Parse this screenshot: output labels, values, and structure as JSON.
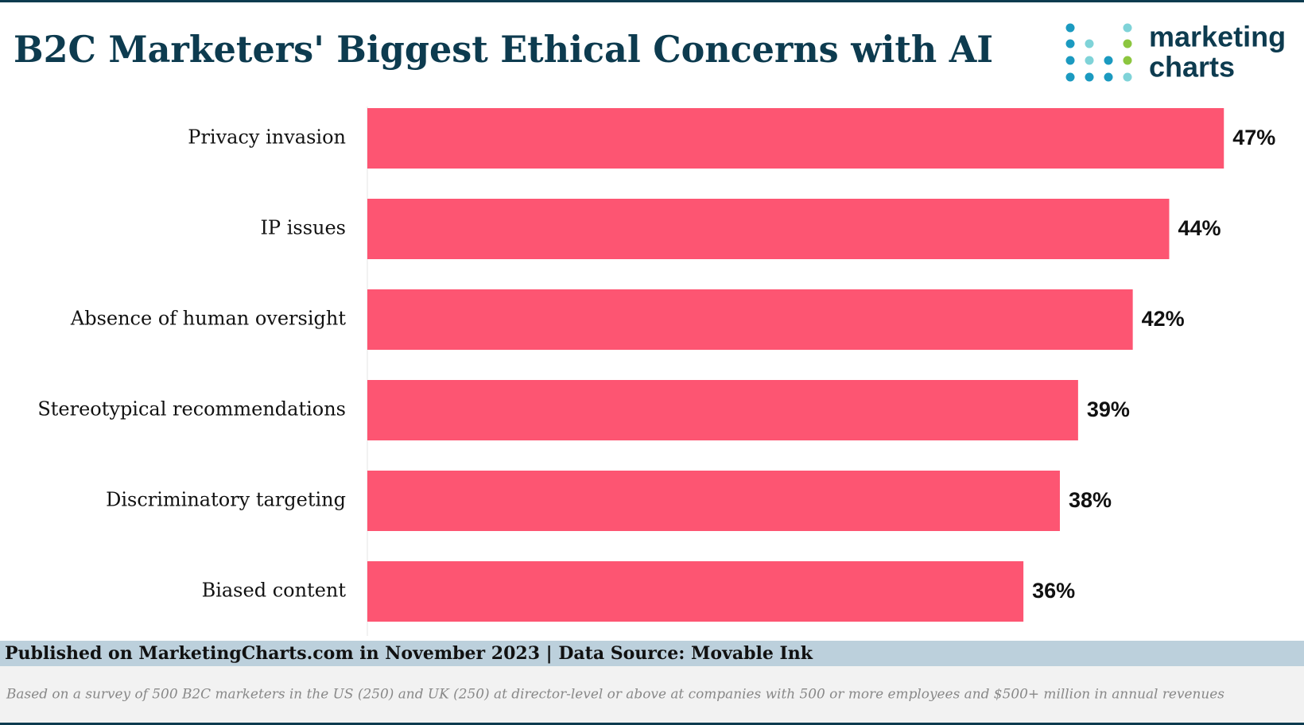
{
  "chart_data": {
    "type": "bar",
    "orientation": "horizontal",
    "title": "B2C Marketers' Biggest Ethical Concerns with AI",
    "categories": [
      "Privacy invasion",
      "IP issues",
      "Absence of human oversight",
      "Stereotypical recommendations",
      "Discriminatory targeting",
      "Biased content"
    ],
    "values": [
      47,
      44,
      42,
      39,
      38,
      36
    ],
    "value_labels": [
      "47%",
      "44%",
      "42%",
      "39%",
      "38%",
      "36%"
    ],
    "color": "#fd5572",
    "xlim": [
      0,
      50
    ],
    "source": "Published on MarketingCharts.com in November 2023 | Data Source: Movable Ink",
    "note": "Based on a survey of 500 B2C marketers in the US (250) and UK (250) at director-level or above at companies with 500 or more employees and $500+ million in annual revenues",
    "logo_text": [
      "marketing",
      "charts"
    ]
  }
}
